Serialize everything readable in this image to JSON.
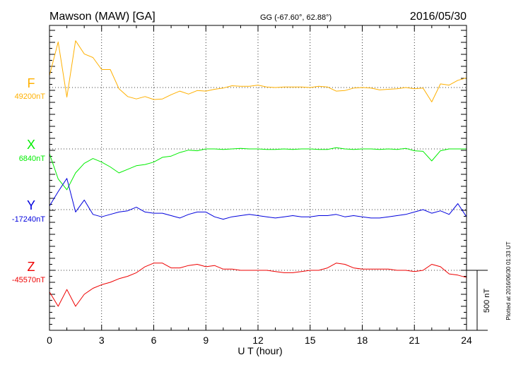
{
  "header": {
    "title": "Mawson (MAW)  [GA]",
    "coords": "GG (-67.60°,  62.88°)",
    "date": "2016/05/30"
  },
  "plotted_note": "Plotted at 2016/06/30 01:33 UT",
  "scale_label": "500 nT",
  "colors": {
    "F": "#ffb000",
    "X": "#00ee00",
    "Y": "#0000dd",
    "Z": "#ee0000"
  },
  "chart_data": {
    "type": "line",
    "title": "Mawson (MAW)  [GA]",
    "xlabel": "U T (hour)",
    "ylabel": "",
    "xlim": [
      0,
      24
    ],
    "x_ticks": [
      "0",
      "3",
      "6",
      "9",
      "12",
      "15",
      "18",
      "21",
      "24"
    ],
    "scale_bar_nT": 500,
    "grid": "dotted",
    "x": [
      0,
      0.5,
      1,
      1.5,
      2,
      2.5,
      3,
      3.5,
      4,
      4.5,
      5,
      5.5,
      6,
      6.5,
      7,
      7.5,
      8,
      8.5,
      9,
      9.5,
      10,
      10.5,
      11,
      11.5,
      12,
      12.5,
      13,
      13.5,
      14,
      14.5,
      15,
      15.5,
      16,
      16.5,
      17,
      17.5,
      18,
      18.5,
      19,
      19.5,
      20,
      20.5,
      21,
      21.5,
      22,
      22.5,
      23,
      23.5,
      24
    ],
    "series": [
      {
        "name": "F",
        "baseline": "49200nT",
        "values": [
          100,
          380,
          -80,
          390,
          280,
          250,
          150,
          150,
          -10,
          -75,
          -95,
          -75,
          -100,
          -95,
          -60,
          -30,
          -55,
          -25,
          -30,
          -15,
          -5,
          15,
          10,
          10,
          20,
          5,
          0,
          5,
          5,
          5,
          0,
          10,
          5,
          -30,
          -25,
          -5,
          0,
          -5,
          -20,
          -15,
          -10,
          0,
          -10,
          -5,
          -120,
          30,
          20,
          60,
          80
        ]
      },
      {
        "name": "X",
        "baseline": "6840nT",
        "values": [
          -40,
          -250,
          -340,
          -200,
          -120,
          -80,
          -110,
          -150,
          -200,
          -170,
          -140,
          -130,
          -110,
          -70,
          -60,
          -30,
          -10,
          -15,
          0,
          0,
          -5,
          0,
          5,
          0,
          0,
          -5,
          -5,
          0,
          -5,
          0,
          0,
          -5,
          -5,
          10,
          0,
          -5,
          0,
          0,
          -5,
          0,
          -5,
          5,
          -15,
          -20,
          -100,
          -15,
          0,
          0,
          0
        ]
      },
      {
        "name": "Y",
        "baseline": "-17240nT",
        "values": [
          30,
          150,
          260,
          -20,
          80,
          -40,
          -60,
          -40,
          -20,
          -10,
          20,
          -20,
          -30,
          -30,
          -50,
          -70,
          -40,
          -20,
          -20,
          -60,
          -80,
          -60,
          -50,
          -40,
          -50,
          -60,
          -70,
          -60,
          -50,
          -60,
          -60,
          -50,
          -50,
          -40,
          -60,
          -50,
          -60,
          -70,
          -70,
          -60,
          -50,
          -40,
          -20,
          0,
          -30,
          -10,
          -40,
          50,
          -60
        ]
      },
      {
        "name": "Z",
        "baseline": "-45570nT",
        "values": [
          -180,
          -300,
          -160,
          -300,
          -200,
          -150,
          -120,
          -100,
          -70,
          -50,
          -20,
          30,
          60,
          60,
          20,
          20,
          40,
          50,
          30,
          40,
          10,
          10,
          0,
          0,
          0,
          0,
          -10,
          -20,
          -20,
          -10,
          0,
          0,
          20,
          60,
          50,
          20,
          10,
          10,
          10,
          10,
          0,
          0,
          -10,
          0,
          50,
          30,
          -30,
          -40,
          -60
        ]
      }
    ]
  }
}
